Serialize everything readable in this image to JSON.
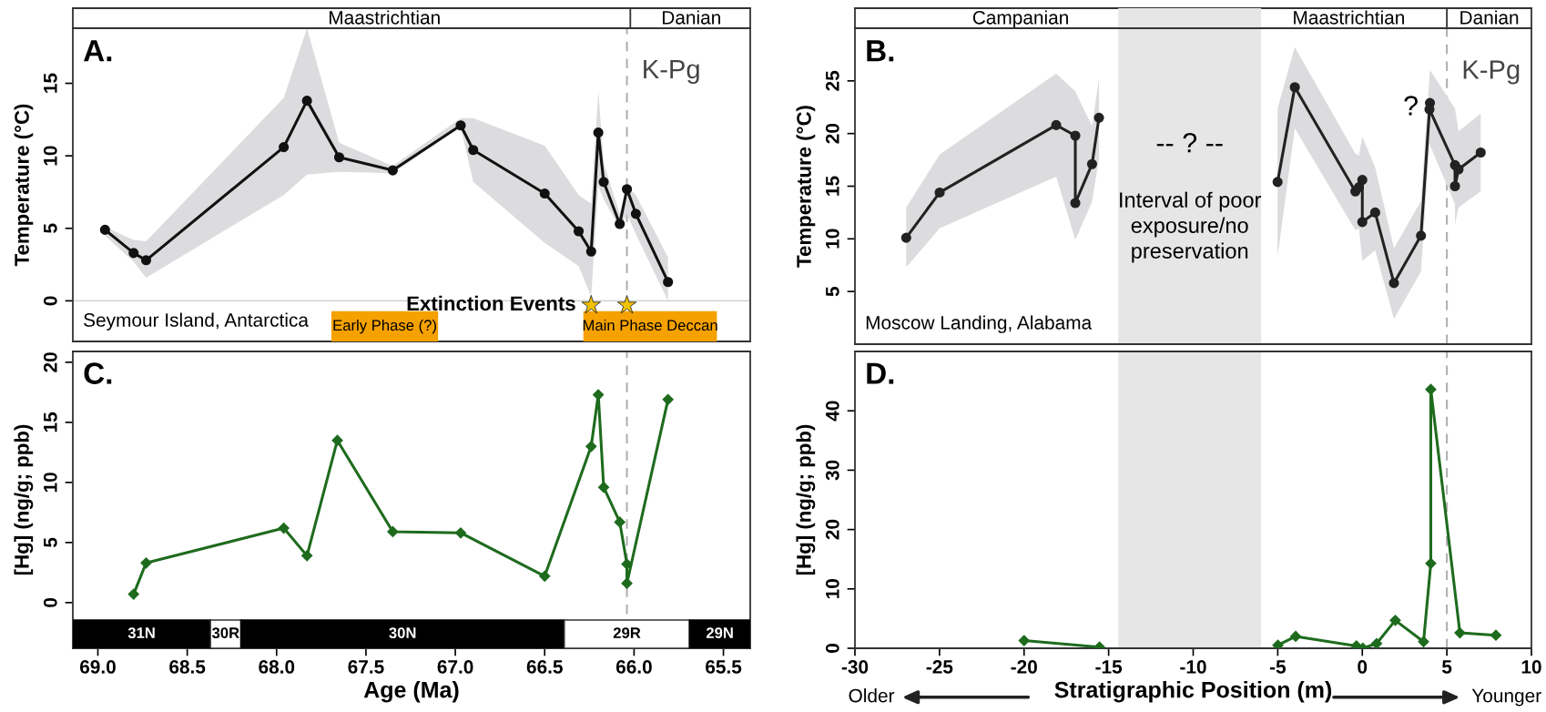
{
  "chart_data": [
    {
      "type": "other",
      "annotations": [
        "Maastrichtian",
        "Danian"
      ]
    },
    {
      "type": "other",
      "annotations": [
        "Campanian",
        "Maastrichtian",
        "Danian"
      ]
    },
    {
      "type": "line",
      "title": "A.",
      "ylabel": "Temperature (°C)",
      "xlim": [
        69.14,
        65.35
      ],
      "ylim": [
        -2.8,
        18.8
      ],
      "yticks": [
        0,
        5,
        10,
        15
      ],
      "tick_labels": "y",
      "marker": "circle",
      "grid": false,
      "series": [
        {
          "color": "#111111",
          "x": [
            68.96,
            68.8,
            68.73,
            67.96,
            67.83,
            67.65,
            67.35,
            66.97,
            66.9,
            66.5,
            66.31,
            66.24,
            66.2,
            66.17,
            66.08,
            66.04,
            65.99,
            65.81
          ],
          "values": [
            4.9,
            3.3,
            2.8,
            10.6,
            13.8,
            9.9,
            9.0,
            12.1,
            10.4,
            7.4,
            4.8,
            3.4,
            11.6,
            8.2,
            5.3,
            7.7,
            6.0,
            1.3
          ],
          "upper": [
            5.1,
            4.2,
            4.1,
            14.0,
            18.8,
            10.9,
            9.3,
            12.6,
            12.6,
            10.7,
            7.3,
            6.7,
            14.5,
            9.5,
            6.0,
            7.9,
            7.3,
            3.0
          ],
          "lower": [
            4.5,
            2.7,
            1.6,
            7.3,
            8.7,
            8.9,
            8.8,
            12.0,
            8.2,
            4.0,
            2.4,
            0.3,
            7.9,
            7.0,
            5.0,
            6.0,
            4.6,
            0.0
          ]
        },
        {
          "type": "scatter",
          "name": "Extinction Events",
          "marker": "star",
          "color": "#f2c200",
          "x": [
            66.24,
            66.04
          ],
          "values": [
            -0.3,
            -0.3
          ]
        }
      ],
      "ref_lines": [
        {
          "axis": "y",
          "value": 0,
          "color": "#cccccc",
          "line_style": "solid"
        },
        {
          "axis": "x",
          "value": 66.04,
          "label": "K-Pg",
          "color": "#b0b0b0",
          "line_style": "dashed"
        }
      ],
      "bands": [
        {
          "axis": "x",
          "from": 67.69,
          "to": 67.1,
          "label": "Early Phase (?)",
          "color": "#f5a100"
        },
        {
          "axis": "x",
          "from": 66.28,
          "to": 65.54,
          "label": "Main Phase Deccan",
          "color": "#f5a100"
        }
      ],
      "annotations": [
        "Seymour Island, Antarctica"
      ]
    },
    {
      "type": "line",
      "title": "B.",
      "ylabel": "Temperature (°C)",
      "xlim": [
        -30,
        10
      ],
      "ylim": [
        0,
        30
      ],
      "yticks": [
        5,
        10,
        15,
        20,
        25
      ],
      "tick_labels": "y",
      "marker": "circle",
      "grid": false,
      "series": [
        {
          "color": "#222222",
          "x": [
            -26.97,
            -24.99,
            -18.1,
            -16.97,
            -16.97,
            -15.98,
            -15.57,
            -10.2,
            -5.01,
            -3.99,
            -0.41,
            -0.2,
            0.0,
            0.0,
            0.76,
            1.87,
            3.47,
            4.0,
            3.97,
            5.48,
            5.48,
            5.69,
            7.0
          ],
          "values": [
            10.1,
            14.4,
            20.8,
            19.8,
            13.4,
            17.1,
            21.5,
            null,
            15.4,
            24.4,
            14.5,
            14.9,
            15.6,
            11.6,
            12.5,
            5.8,
            10.3,
            22.9,
            22.3,
            17.0,
            15.0,
            16.6,
            18.2
          ],
          "upper": [
            13.0,
            18.0,
            25.7,
            24.0,
            24.0,
            20.7,
            25.2,
            null,
            22.4,
            28.2,
            18.1,
            17.9,
            19.7,
            19.7,
            16.8,
            9.1,
            13.6,
            26.1,
            26.1,
            22.4,
            22.4,
            20.2,
            21.9
          ],
          "lower": [
            7.3,
            11.0,
            15.9,
            9.9,
            9.9,
            13.5,
            17.6,
            null,
            8.3,
            20.5,
            10.8,
            11.0,
            7.9,
            7.9,
            8.9,
            2.4,
            6.9,
            19.7,
            19.0,
            13.3,
            11.3,
            13.0,
            14.5
          ]
        }
      ],
      "ref_lines": [
        {
          "axis": "x",
          "value": 5,
          "label": "K-Pg",
          "color": "#b0b0b0",
          "line_style": "dashed"
        }
      ],
      "bands": [
        {
          "axis": "x",
          "from": -14.43,
          "to": -5.98,
          "color": "#e6e6e6"
        }
      ],
      "annotations": [
        "Moscow Landing, Alabama",
        "-- ? --",
        "Interval of poor\nexposure/no\npreservation",
        {
          "text": "?",
          "x": 4.0,
          "y": 22.9
        }
      ]
    },
    {
      "type": "line",
      "title": "C.",
      "xlabel": "Age (Ma)",
      "ylabel": "[Hg] (ng/g; ppb)",
      "xlim": [
        69.14,
        65.35
      ],
      "ylim": [
        -3.8,
        20.9
      ],
      "xticks": [
        {
          "value": 69,
          "label": "69.0"
        },
        68.5,
        {
          "value": 68,
          "label": "68.0"
        },
        67.5,
        {
          "value": 67,
          "label": "67.0"
        },
        66.5,
        {
          "value": 66,
          "label": "66.0"
        },
        65.5
      ],
      "yticks": [
        0,
        5,
        10,
        15,
        20
      ],
      "marker": "diamond",
      "grid": false,
      "series": [
        {
          "color": "#1e6b1e",
          "x": [
            68.8,
            68.73,
            67.96,
            67.83,
            67.66,
            67.35,
            66.97,
            66.5,
            66.24,
            66.2,
            66.17,
            66.08,
            66.04,
            66.04,
            65.81
          ],
          "values": [
            0.7,
            3.3,
            6.2,
            3.9,
            13.5,
            5.9,
            5.8,
            2.2,
            13.0,
            17.3,
            9.6,
            6.7,
            3.2,
            1.6,
            16.9
          ]
        }
      ],
      "ref_lines": [
        {
          "axis": "x",
          "value": 66.04,
          "color": "#b0b0b0",
          "line_style": "dashed"
        }
      ],
      "bands": [
        {
          "axis": "x",
          "from": 69.14,
          "to": 68.37,
          "label": "31N",
          "color": "#000000"
        },
        {
          "axis": "x",
          "from": 68.37,
          "to": 68.2,
          "label": "30R",
          "color": "#ffffff"
        },
        {
          "axis": "x",
          "from": 68.2,
          "to": 66.39,
          "label": "30N",
          "color": "#000000"
        },
        {
          "axis": "x",
          "from": 66.39,
          "to": 65.69,
          "label": "29R",
          "color": "#ffffff"
        },
        {
          "axis": "x",
          "from": 65.69,
          "to": 65.35,
          "label": "29N",
          "color": "#000000"
        }
      ]
    },
    {
      "type": "line",
      "title": "D.",
      "xlabel": "Stratigraphic Position (m)",
      "ylabel": "[Hg] (ng/g; ppb)",
      "xlim": [
        -30,
        10
      ],
      "ylim": [
        0,
        50
      ],
      "xticks": [
        -30,
        -25,
        -20,
        -15,
        -10,
        -5,
        0,
        5,
        10
      ],
      "yticks": [
        0,
        10,
        20,
        30,
        40
      ],
      "marker": "diamond",
      "grid": false,
      "series": [
        {
          "color": "#1e6b1e",
          "x": [
            -20.0,
            -15.54,
            -10.2,
            -4.99,
            -3.94,
            -0.35,
            0.03,
            0.85,
            1.95,
            3.62,
            4.05,
            4.05,
            5.77,
            7.9
          ],
          "values": [
            1.3,
            0.2,
            null,
            0.5,
            2.0,
            0.4,
            0.0,
            0.8,
            4.7,
            1.1,
            14.3,
            43.6,
            2.6,
            2.2
          ]
        }
      ],
      "ref_lines": [
        {
          "axis": "x",
          "value": 5,
          "color": "#b0b0b0",
          "line_style": "dashed"
        }
      ],
      "bands": [
        {
          "axis": "x",
          "from": -14.43,
          "to": -5.98,
          "color": "#e6e6e6"
        }
      ],
      "annotations": [
        "Older",
        "Younger"
      ]
    }
  ]
}
